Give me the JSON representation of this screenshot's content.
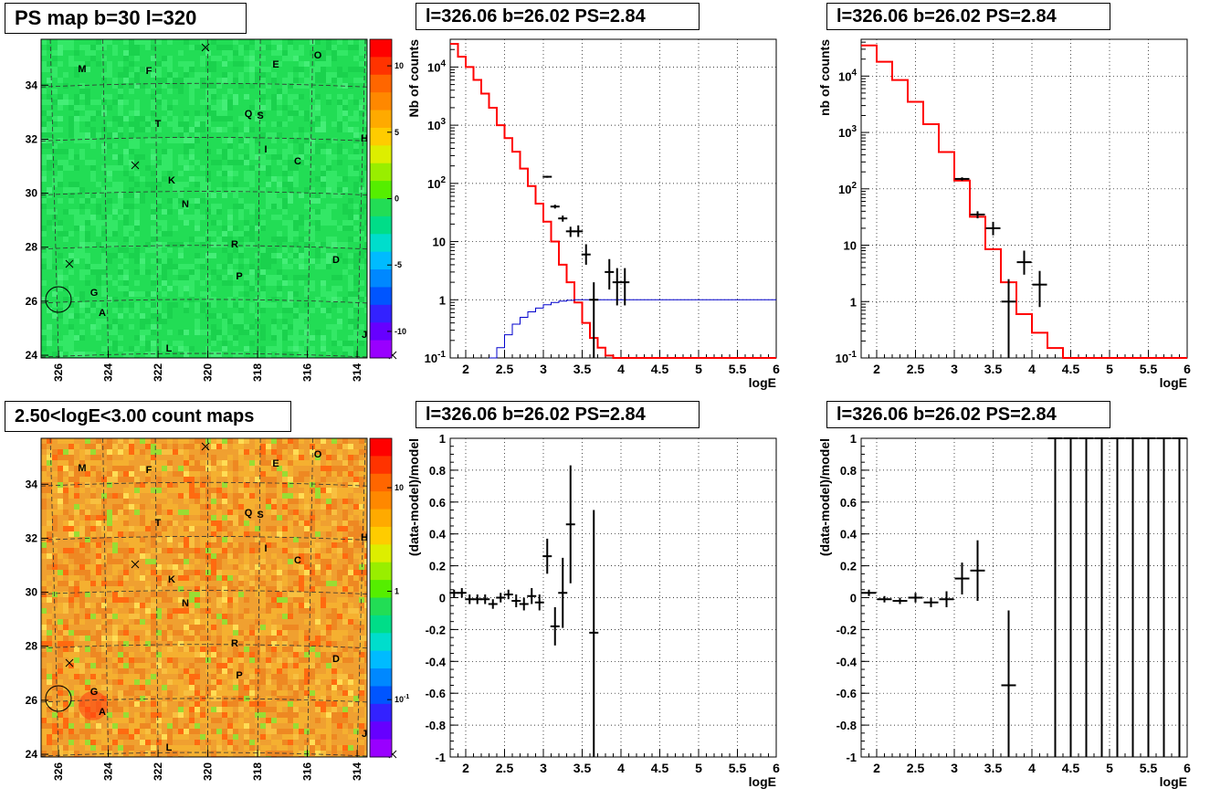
{
  "panels": {
    "map_top": {
      "title": "PS map b=30 l=320",
      "x_ticks": [
        "326",
        "324",
        "322",
        "320",
        "318",
        "316",
        "314"
      ],
      "y_ticks": [
        "24",
        "26",
        "28",
        "30",
        "32",
        "34"
      ],
      "palette_ticks": [
        "10",
        "5",
        "0",
        "-5",
        "-10"
      ]
    },
    "map_bottom": {
      "title": "2.50<logE<3.00 count maps",
      "x_ticks": [
        "326",
        "324",
        "322",
        "320",
        "318",
        "316",
        "314"
      ],
      "y_ticks": [
        "24",
        "26",
        "28",
        "30",
        "32",
        "34"
      ],
      "palette_ticks": [
        "10",
        "1",
        "10-1"
      ]
    },
    "sources": [
      "M",
      "F",
      "E",
      "O",
      "T",
      "Q",
      "S",
      "H",
      "I",
      "C",
      "K",
      "N",
      "R",
      "D",
      "P",
      "G",
      "A",
      "L",
      "J"
    ],
    "spec_mid": {
      "title": "l=326.06 b=26.02 PS=2.84",
      "ylabel": "Nb of counts",
      "xlabel": "logE"
    },
    "spec_right": {
      "title": "l=326.06 b=26.02 PS=2.84",
      "ylabel": "nb of counts",
      "xlabel": "logE"
    },
    "resid_mid": {
      "title": "l=326.06 b=26.02 PS=2.84",
      "ylabel": "(data-model)/model",
      "xlabel": "logE"
    },
    "resid_right": {
      "title": "l=326.06 b=26.02 PS=2.84",
      "ylabel": "(data-model)/model",
      "xlabel": "logE"
    }
  },
  "colors": {
    "model": "#ff0000",
    "data": "#000000",
    "curve": "#0000cc",
    "map_top_bg": "#22dd55",
    "map_bottom_bg": "#f0a030"
  },
  "chart_data": [
    {
      "type": "heatmap",
      "title": "PS map b=30 l=320",
      "xlim": [
        326.7,
        313.6
      ],
      "ylim": [
        23.9,
        35.7
      ],
      "zlim": [
        -12,
        12
      ],
      "palette_ticks": [
        10,
        5,
        0,
        -5,
        -10
      ]
    },
    {
      "type": "heatmap",
      "title": "2.50<logE<3.00 count maps",
      "xlim": [
        326.7,
        313.6
      ],
      "ylim": [
        23.9,
        35.7
      ],
      "palette_scale": "log",
      "palette_ticks": [
        "10",
        "1",
        "10-1"
      ]
    },
    {
      "type": "line",
      "title": "l=326.06 b=26.02 PS=2.84",
      "xlabel": "logE",
      "ylabel": "Nb of counts",
      "xlim": [
        1.8,
        6.0
      ],
      "ylim": [
        0.1,
        30000
      ],
      "y_scale": "log",
      "grid": true,
      "x_ticks": [
        "2",
        "2.5",
        "3",
        "3.5",
        "4",
        "4.5",
        "5",
        "5.5",
        "6"
      ],
      "y_ticks": [
        "10-1",
        "1",
        "10",
        "102",
        "103",
        "104"
      ],
      "model_step": {
        "edges": [
          1.8,
          1.9,
          2.0,
          2.1,
          2.2,
          2.3,
          2.4,
          2.5,
          2.6,
          2.7,
          2.8,
          2.9,
          3.0,
          3.1,
          3.2,
          3.3,
          3.4,
          3.5,
          3.6,
          3.7,
          3.8,
          3.9,
          4.0,
          4.1,
          4.2,
          4.3,
          4.4,
          4.5,
          6.0
        ],
        "values": [
          25000,
          15000,
          10000,
          6000,
          3500,
          2000,
          1000,
          600,
          350,
          180,
          90,
          45,
          22,
          10,
          4,
          2,
          0.9,
          0.4,
          0.22,
          0.15,
          0.11,
          0.1,
          0.1,
          0.1,
          0.1,
          0.1,
          0.1,
          0.1
        ]
      },
      "curve": {
        "x": [
          2.3,
          2.4,
          2.5,
          2.6,
          2.7,
          2.8,
          2.9,
          3.0,
          3.1,
          3.2,
          3.3,
          3.4,
          3.5,
          3.6,
          3.7,
          3.8,
          3.9,
          4.0,
          4.5,
          5.0,
          5.5,
          6.0
        ],
        "y": [
          0.1,
          0.15,
          0.25,
          0.38,
          0.5,
          0.62,
          0.72,
          0.82,
          0.9,
          0.95,
          0.98,
          1.0,
          1.0,
          1.0,
          1.0,
          1.0,
          1.0,
          1.0,
          1.0,
          1.0,
          1.0,
          1.0
        ]
      },
      "points": [
        {
          "x": 3.05,
          "y": 130,
          "lo": 125,
          "hi": 135
        },
        {
          "x": 3.15,
          "y": 40,
          "lo": 37,
          "hi": 43
        },
        {
          "x": 3.25,
          "y": 25,
          "lo": 22,
          "hi": 28
        },
        {
          "x": 3.35,
          "y": 15,
          "lo": 12,
          "hi": 18
        },
        {
          "x": 3.45,
          "y": 15,
          "lo": 12,
          "hi": 19
        },
        {
          "x": 3.55,
          "y": 6,
          "lo": 4,
          "hi": 9
        },
        {
          "x": 3.65,
          "y": 1,
          "lo": 0.1,
          "hi": 2
        },
        {
          "x": 3.85,
          "y": 3,
          "lo": 1.5,
          "hi": 5
        },
        {
          "x": 3.95,
          "y": 2,
          "lo": 0.8,
          "hi": 3.5
        },
        {
          "x": 4.05,
          "y": 2,
          "lo": 0.8,
          "hi": 3.5
        }
      ]
    },
    {
      "type": "line",
      "title": "l=326.06 b=26.02 PS=2.84",
      "xlabel": "logE",
      "ylabel": "nb of counts",
      "xlim": [
        1.8,
        6.0
      ],
      "ylim": [
        0.1,
        45000
      ],
      "y_scale": "log",
      "grid": true,
      "x_ticks": [
        "2",
        "2.5",
        "3",
        "3.5",
        "4",
        "4.5",
        "5",
        "5.5",
        "6"
      ],
      "y_ticks": [
        "10-1",
        "1",
        "10",
        "102",
        "103",
        "104"
      ],
      "model_step": {
        "edges": [
          1.8,
          2.0,
          2.2,
          2.4,
          2.6,
          2.8,
          3.0,
          3.2,
          3.4,
          3.6,
          3.8,
          4.0,
          4.2,
          4.4,
          6.0
        ],
        "values": [
          35000,
          18000,
          8500,
          3500,
          1400,
          450,
          140,
          32,
          8.5,
          2.2,
          0.6,
          0.28,
          0.15,
          0.1
        ]
      },
      "points": [
        {
          "x": 3.1,
          "y": 150,
          "lo": 140,
          "hi": 160
        },
        {
          "x": 3.3,
          "y": 35,
          "lo": 30,
          "hi": 40
        },
        {
          "x": 3.5,
          "y": 20,
          "lo": 15,
          "hi": 26
        },
        {
          "x": 3.7,
          "y": 1,
          "lo": 0.1,
          "hi": 2.5
        },
        {
          "x": 3.9,
          "y": 5,
          "lo": 3,
          "hi": 8
        },
        {
          "x": 4.1,
          "y": 2,
          "lo": 0.8,
          "hi": 3.5
        }
      ]
    },
    {
      "type": "scatter",
      "title": "l=326.06 b=26.02 PS=2.84",
      "xlabel": "logE",
      "ylabel": "(data-model)/model",
      "xlim": [
        1.8,
        6.0
      ],
      "ylim": [
        -1,
        1
      ],
      "grid": true,
      "x_ticks": [
        "2",
        "2.5",
        "3",
        "3.5",
        "4",
        "4.5",
        "5",
        "5.5",
        "6"
      ],
      "y_ticks": [
        "-1",
        "-0.8",
        "-0.6",
        "-0.4",
        "-0.2",
        "0",
        "0.2",
        "0.4",
        "0.6",
        "0.8",
        "1"
      ],
      "points": [
        {
          "x": 1.85,
          "y": 0.03,
          "lo": 0.0,
          "hi": 0.05
        },
        {
          "x": 1.95,
          "y": 0.03,
          "lo": 0.0,
          "hi": 0.06
        },
        {
          "x": 2.05,
          "y": -0.01,
          "lo": -0.04,
          "hi": 0.02
        },
        {
          "x": 2.15,
          "y": -0.01,
          "lo": -0.04,
          "hi": 0.02
        },
        {
          "x": 2.25,
          "y": -0.01,
          "lo": -0.04,
          "hi": 0.02
        },
        {
          "x": 2.35,
          "y": -0.04,
          "lo": -0.07,
          "hi": -0.01
        },
        {
          "x": 2.45,
          "y": 0.0,
          "lo": -0.03,
          "hi": 0.03
        },
        {
          "x": 2.55,
          "y": 0.02,
          "lo": -0.01,
          "hi": 0.05
        },
        {
          "x": 2.65,
          "y": -0.02,
          "lo": -0.06,
          "hi": 0.02
        },
        {
          "x": 2.75,
          "y": -0.04,
          "lo": -0.08,
          "hi": 0.0
        },
        {
          "x": 2.85,
          "y": 0.01,
          "lo": -0.04,
          "hi": 0.06
        },
        {
          "x": 2.95,
          "y": -0.03,
          "lo": -0.08,
          "hi": 0.02
        },
        {
          "x": 3.05,
          "y": 0.26,
          "lo": 0.15,
          "hi": 0.37
        },
        {
          "x": 3.15,
          "y": -0.18,
          "lo": -0.3,
          "hi": -0.06
        },
        {
          "x": 3.25,
          "y": 0.03,
          "lo": -0.19,
          "hi": 0.25
        },
        {
          "x": 3.35,
          "y": 0.46,
          "lo": 0.09,
          "hi": 0.83
        },
        {
          "x": 3.65,
          "y": -0.22,
          "lo": -1.0,
          "hi": 0.55
        }
      ]
    },
    {
      "type": "scatter",
      "title": "l=326.06 b=26.02 PS=2.84",
      "xlabel": "logE",
      "ylabel": "(data-model)/model",
      "xlim": [
        1.8,
        6.0
      ],
      "ylim": [
        -1,
        1
      ],
      "grid": true,
      "x_ticks": [
        "2",
        "2.5",
        "3",
        "3.5",
        "4",
        "4.5",
        "5",
        "5.5",
        "6"
      ],
      "y_ticks": [
        "-1",
        "-0.8",
        "-0.6",
        "-0.4",
        "-0.2",
        "0",
        "0.2",
        "0.4",
        "0.6",
        "0.8",
        "1"
      ],
      "points": [
        {
          "x": 1.9,
          "y": 0.03,
          "lo": 0.01,
          "hi": 0.05
        },
        {
          "x": 2.1,
          "y": -0.01,
          "lo": -0.03,
          "hi": 0.01
        },
        {
          "x": 2.3,
          "y": -0.02,
          "lo": -0.04,
          "hi": 0.0
        },
        {
          "x": 2.5,
          "y": 0.0,
          "lo": -0.03,
          "hi": 0.03
        },
        {
          "x": 2.7,
          "y": -0.03,
          "lo": -0.06,
          "hi": 0.0
        },
        {
          "x": 2.9,
          "y": -0.01,
          "lo": -0.06,
          "hi": 0.04
        },
        {
          "x": 3.1,
          "y": 0.12,
          "lo": 0.02,
          "hi": 0.22
        },
        {
          "x": 3.3,
          "y": 0.17,
          "lo": -0.02,
          "hi": 0.36
        },
        {
          "x": 3.7,
          "y": -0.55,
          "lo": -1.0,
          "hi": -0.08
        },
        {
          "x": 4.3,
          "y": 1.0,
          "lo": -1.0,
          "hi": 1.0
        },
        {
          "x": 4.5,
          "y": 1.0,
          "lo": -1.0,
          "hi": 1.0
        },
        {
          "x": 4.7,
          "y": 1.0,
          "lo": -1.0,
          "hi": 1.0
        },
        {
          "x": 4.9,
          "y": 1.0,
          "lo": -1.0,
          "hi": 1.0
        },
        {
          "x": 5.1,
          "y": 1.0,
          "lo": -1.0,
          "hi": 1.0
        },
        {
          "x": 5.3,
          "y": 1.0,
          "lo": -1.0,
          "hi": 1.0
        },
        {
          "x": 5.5,
          "y": 1.0,
          "lo": -1.0,
          "hi": 1.0
        },
        {
          "x": 5.7,
          "y": 1.0,
          "lo": -1.0,
          "hi": 1.0
        },
        {
          "x": 5.9,
          "y": 1.0,
          "lo": -1.0,
          "hi": 1.0
        }
      ]
    }
  ]
}
